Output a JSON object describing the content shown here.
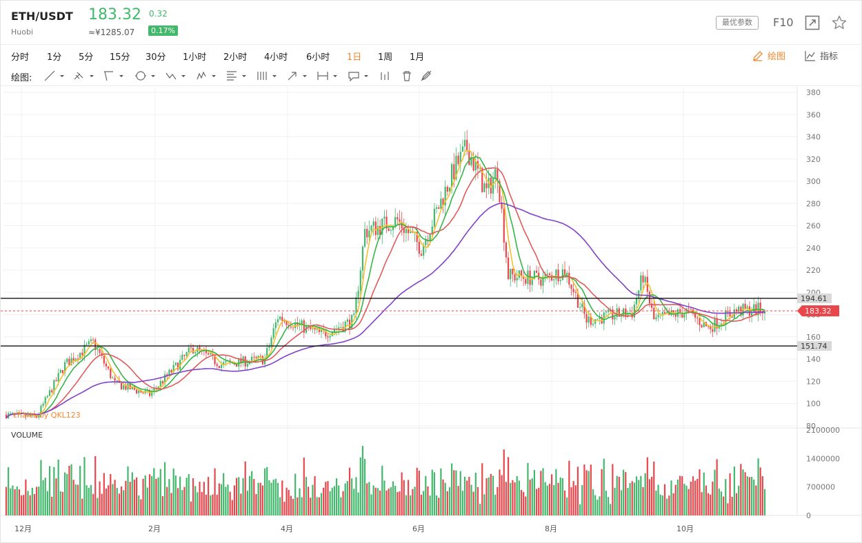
{
  "header": {
    "pair": "ETH/USDT",
    "exchange": "Huobi",
    "price": "183.32",
    "change": "0.32",
    "cny": "≈¥1285.07",
    "change_pct": "0.17%",
    "best_params": "最优参数",
    "f10": "F10"
  },
  "periods": [
    {
      "label": "分时",
      "active": false
    },
    {
      "label": "1分",
      "active": false
    },
    {
      "label": "5分",
      "active": false
    },
    {
      "label": "15分",
      "active": false
    },
    {
      "label": "30分",
      "active": false
    },
    {
      "label": "1小时",
      "active": false
    },
    {
      "label": "2小时",
      "active": false
    },
    {
      "label": "4小时",
      "active": false
    },
    {
      "label": "6小时",
      "active": false
    },
    {
      "label": "1日",
      "active": true
    },
    {
      "label": "1周",
      "active": false
    },
    {
      "label": "1月",
      "active": false
    }
  ],
  "right_tools": {
    "draw": "绘图",
    "indicators": "指标"
  },
  "drawing_tools": {
    "label": "绘图:",
    "items": [
      "line-tool-icon",
      "ray-tool-icon",
      "channel-tool-icon",
      "circle-tool-icon",
      "zigzag-tool-icon",
      "pattern-tool-icon",
      "fibonacci-tool-icon",
      "period-tool-icon",
      "arrow-tool-icon",
      "range-tool-icon",
      "comment-tool-icon",
      "bars-tool-icon",
      "trash-icon",
      "pen-hide-icon"
    ]
  },
  "colors": {
    "up": "#41b86b",
    "down": "#e8464b",
    "ma_yellow": "#f2c12e",
    "ma_green": "#35b448",
    "ma_red": "#e05a5a",
    "ma_purple": "#8040c8",
    "accent": "#f0882c"
  },
  "chart": {
    "watermark": "charts by QKL123",
    "volume_label": "VOLUME",
    "current_price_label": "183.32",
    "level_high_label": "194.61",
    "level_low_label": "151.74"
  },
  "chart_data": {
    "type": "candlestick",
    "x_labels": [
      "12月",
      "2月",
      "4月",
      "6月",
      "8月",
      "10月"
    ],
    "price_axis": {
      "ticks": [
        80,
        100,
        120,
        140,
        160,
        180,
        200,
        220,
        240,
        260,
        280,
        300,
        320,
        340,
        360,
        380
      ],
      "range": [
        78,
        385
      ]
    },
    "volume_axis": {
      "ticks": [
        0,
        700000,
        1400000,
        2100000
      ],
      "tick_labels": [
        "0",
        "700000",
        "1400000",
        "2100000"
      ],
      "range": [
        0,
        2100000
      ]
    },
    "horizontal_levels": [
      194.61,
      151.74
    ],
    "current_price": 183.32,
    "price_path": [
      {
        "month": "2018-12-01",
        "price": 90
      },
      {
        "month": "2018-12-15",
        "price": 88
      },
      {
        "month": "2018-12-28",
        "price": 135
      },
      {
        "month": "2019-01-10",
        "price": 155
      },
      {
        "month": "2019-01-20",
        "price": 118
      },
      {
        "month": "2019-02-05",
        "price": 108
      },
      {
        "month": "2019-02-25",
        "price": 150
      },
      {
        "month": "2019-03-10",
        "price": 135
      },
      {
        "month": "2019-03-30",
        "price": 140
      },
      {
        "month": "2019-04-05",
        "price": 178
      },
      {
        "month": "2019-04-25",
        "price": 162
      },
      {
        "month": "2019-05-10",
        "price": 175
      },
      {
        "month": "2019-05-15",
        "price": 255
      },
      {
        "month": "2019-05-30",
        "price": 265
      },
      {
        "month": "2019-06-10",
        "price": 240
      },
      {
        "month": "2019-06-25",
        "price": 310
      },
      {
        "month": "2019-07-01",
        "price": 330
      },
      {
        "month": "2019-07-10",
        "price": 290
      },
      {
        "month": "2019-07-15",
        "price": 310
      },
      {
        "month": "2019-07-20",
        "price": 215
      },
      {
        "month": "2019-08-05",
        "price": 212
      },
      {
        "month": "2019-08-15",
        "price": 220
      },
      {
        "month": "2019-08-25",
        "price": 175
      },
      {
        "month": "2019-09-15",
        "price": 182
      },
      {
        "month": "2019-09-20",
        "price": 215
      },
      {
        "month": "2019-09-25",
        "price": 175
      },
      {
        "month": "2019-10-10",
        "price": 183
      },
      {
        "month": "2019-10-20",
        "price": 168
      },
      {
        "month": "2019-11-01",
        "price": 183
      },
      {
        "month": "2019-11-15",
        "price": 185
      }
    ]
  }
}
